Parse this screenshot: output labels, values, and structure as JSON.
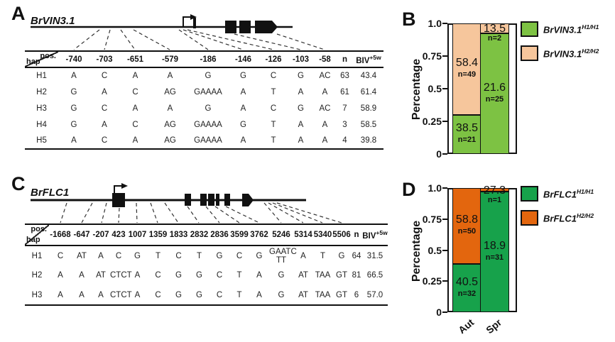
{
  "panels": {
    "A": {
      "letter": "A",
      "gene_title": "BrVIN3.1",
      "table": {
        "corner_top": "pos.",
        "corner_bottom": "hap",
        "columns": [
          "-740",
          "-703",
          "-651",
          "-579",
          "-186",
          "-146",
          "-126",
          "-103",
          "-58",
          "n",
          {
            "base": "BIV",
            "sup": "+5w"
          }
        ],
        "rows": [
          [
            "H1",
            "A",
            "C",
            "A",
            "A",
            "G",
            "G",
            "C",
            "G",
            "AC",
            "63",
            "43.4"
          ],
          [
            "H2",
            "G",
            "A",
            "C",
            "AG",
            "GAAAA",
            "A",
            "T",
            "A",
            "A",
            "61",
            "61.4"
          ],
          [
            "H3",
            "G",
            "C",
            "A",
            "A",
            "G",
            "A",
            "C",
            "G",
            "AC",
            "7",
            "58.9"
          ],
          [
            "H4",
            "G",
            "A",
            "C",
            "AG",
            "GAAAA",
            "G",
            "T",
            "A",
            "A",
            "3",
            "58.5"
          ],
          [
            "H5",
            "A",
            "C",
            "A",
            "AG",
            "GAAAA",
            "A",
            "T",
            "A",
            "A",
            "4",
            "39.8"
          ]
        ]
      }
    },
    "B": {
      "letter": "B"
    },
    "C": {
      "letter": "C",
      "gene_title": "BrFLC1",
      "table": {
        "corner_top": "pos.",
        "corner_bottom": "hap",
        "columns": [
          "-1668",
          "-647",
          "-207",
          "423",
          "1007",
          "1359",
          "1833",
          "2832",
          "2836",
          "3599",
          "3762",
          "5246",
          "5314",
          "5340",
          "5506",
          "n",
          {
            "base": "BIV",
            "sup": "+5w"
          }
        ],
        "rows": [
          [
            "H1",
            "C",
            "AT",
            "A",
            "C",
            "G",
            "T",
            "C",
            "T",
            "G",
            "C",
            "G",
            "GAATC\nTT",
            "A",
            "T",
            "G",
            "64",
            "31.5"
          ],
          [
            "H2",
            "A",
            "A",
            "AT",
            "CTCT",
            "A",
            "C",
            "G",
            "G",
            "C",
            "T",
            "A",
            "G",
            "AT",
            "TAA",
            "GT",
            "81",
            "66.5"
          ],
          [
            "H3",
            "A",
            "A",
            "A",
            "CTCT",
            "A",
            "C",
            "G",
            "G",
            "C",
            "T",
            "A",
            "G",
            "AT",
            "TAA",
            "GT",
            "6",
            "57.0"
          ]
        ]
      }
    },
    "D": {
      "letter": "D"
    }
  },
  "chart_data": [
    {
      "id": "B",
      "type": "stacked_bar",
      "ylabel": "Percentage",
      "ylim": [
        0,
        1.0
      ],
      "yticks": [
        {
          "label": "1.0",
          "value": 1.0
        },
        {
          "label": "0.75",
          "value": 0.75
        },
        {
          "label": "0.5",
          "value": 0.5
        },
        {
          "label": "0.25",
          "value": 0.25
        },
        {
          "label": "0",
          "value": 0
        }
      ],
      "categories": [
        "Aut",
        "Spr"
      ],
      "show_x_labels": false,
      "legend": [
        {
          "gene": "BrVIN3.1",
          "sup": "H1/H1",
          "color": "#7dc243"
        },
        {
          "gene": "BrVIN3.1",
          "sup": "H2/H2",
          "color": "#f6c69c"
        }
      ],
      "bars": [
        {
          "category": "Aut",
          "segments": [
            {
              "name": "BrVIN3.1 H1/H1",
              "color": "#7dc243",
              "fraction": 0.3,
              "value_label": "38.5",
              "count_label": "n=21"
            },
            {
              "name": "BrVIN3.1 H2/H2",
              "color": "#f6c69c",
              "fraction": 0.7,
              "value_label": "58.4",
              "count_label": "n=49"
            }
          ]
        },
        {
          "category": "Spr",
          "segments": [
            {
              "name": "BrVIN3.1 H1/H1",
              "color": "#7dc243",
              "fraction": 0.926,
              "value_label": "21.6",
              "count_label": "n=25"
            },
            {
              "name": "BrVIN3.1 H2/H2",
              "color": "#f6c69c",
              "fraction": 0.074,
              "value_label": "13.5",
              "count_label": "n=2"
            }
          ]
        }
      ]
    },
    {
      "id": "D",
      "type": "stacked_bar",
      "ylabel": "Percentage",
      "ylim": [
        0,
        1.0
      ],
      "yticks": [
        {
          "label": "1.0",
          "value": 1.0
        },
        {
          "label": "0.75",
          "value": 0.75
        },
        {
          "label": "0.5",
          "value": 0.5
        },
        {
          "label": "0.25",
          "value": 0.25
        },
        {
          "label": "0",
          "value": 0
        }
      ],
      "categories": [
        "Aut",
        "Spr"
      ],
      "show_x_labels": true,
      "legend": [
        {
          "gene": "BrFLC1",
          "sup": "H1/H1",
          "color": "#17a24b"
        },
        {
          "gene": "BrFLC1",
          "sup": "H2/H2",
          "color": "#e3660e"
        }
      ],
      "bars": [
        {
          "category": "Aut",
          "segments": [
            {
              "name": "BrFLC1 H1/H1",
              "color": "#17a24b",
              "fraction": 0.39,
              "value_label": "40.5",
              "count_label": "n=32"
            },
            {
              "name": "BrFLC1 H2/H2",
              "color": "#e3660e",
              "fraction": 0.61,
              "value_label": "58.8",
              "count_label": "n=50"
            }
          ]
        },
        {
          "category": "Spr",
          "segments": [
            {
              "name": "BrFLC1 H1/H1",
              "color": "#17a24b",
              "fraction": 0.969,
              "value_label": "18.9",
              "count_label": "n=31"
            },
            {
              "name": "BrFLC1 H2/H2",
              "color": "#e3660e",
              "fraction": 0.031,
              "value_label": "27.3",
              "count_label": "n=1"
            }
          ]
        }
      ]
    }
  ]
}
